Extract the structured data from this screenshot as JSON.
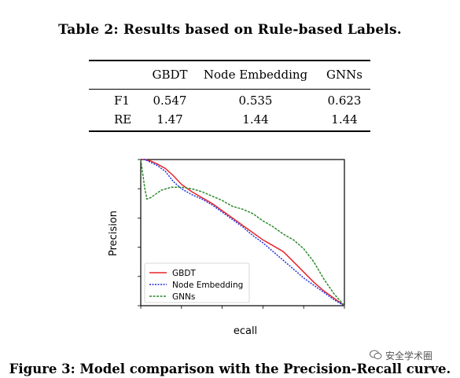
{
  "table": {
    "caption": "Table 2: Results based on Rule-based Labels.",
    "headers": [
      "",
      "GBDT",
      "Node Embedding",
      "GNNs"
    ],
    "rows": [
      {
        "label": "F1",
        "values": [
          "0.547",
          "0.535",
          "0.623"
        ]
      },
      {
        "label": "RE",
        "values": [
          "1.47",
          "1.44",
          "1.44"
        ]
      }
    ]
  },
  "chart_data": {
    "type": "line",
    "title": "",
    "xlabel": "ecall",
    "ylabel": "Precision",
    "xlim": [
      0,
      1
    ],
    "ylim": [
      0,
      1
    ],
    "grid": false,
    "legend_position": "bottom-left",
    "series": [
      {
        "name": "GBDT",
        "color": "#e8242a",
        "x": [
          0,
          0.02,
          0.05,
          0.08,
          0.12,
          0.16,
          0.2,
          0.25,
          0.3,
          0.35,
          0.4,
          0.45,
          0.5,
          0.55,
          0.6,
          0.65,
          0.7,
          0.75,
          0.8,
          0.85,
          0.9,
          0.95,
          1.0
        ],
        "y": [
          1.0,
          1.0,
          0.99,
          0.97,
          0.94,
          0.89,
          0.83,
          0.78,
          0.74,
          0.7,
          0.65,
          0.6,
          0.55,
          0.5,
          0.45,
          0.41,
          0.37,
          0.3,
          0.23,
          0.16,
          0.1,
          0.05,
          0.0
        ]
      },
      {
        "name": "Node Embedding",
        "color": "#1f2fd8",
        "x": [
          0,
          0.02,
          0.05,
          0.08,
          0.12,
          0.16,
          0.2,
          0.25,
          0.3,
          0.35,
          0.4,
          0.45,
          0.5,
          0.55,
          0.6,
          0.65,
          0.7,
          0.75,
          0.8,
          0.85,
          0.9,
          0.95,
          1.0
        ],
        "y": [
          1.0,
          1.0,
          0.98,
          0.96,
          0.92,
          0.85,
          0.8,
          0.76,
          0.73,
          0.69,
          0.64,
          0.59,
          0.54,
          0.48,
          0.43,
          0.37,
          0.31,
          0.25,
          0.19,
          0.14,
          0.09,
          0.04,
          0.0
        ]
      },
      {
        "name": "GNNs",
        "color": "#2c8a2c",
        "x": [
          0,
          0.01,
          0.02,
          0.03,
          0.05,
          0.08,
          0.1,
          0.15,
          0.2,
          0.25,
          0.3,
          0.35,
          0.4,
          0.45,
          0.5,
          0.55,
          0.6,
          0.65,
          0.7,
          0.75,
          0.8,
          0.85,
          0.9,
          0.95,
          1.0
        ],
        "y": [
          1.0,
          0.9,
          0.8,
          0.73,
          0.74,
          0.77,
          0.79,
          0.81,
          0.81,
          0.8,
          0.78,
          0.75,
          0.72,
          0.68,
          0.66,
          0.63,
          0.58,
          0.54,
          0.49,
          0.45,
          0.39,
          0.3,
          0.18,
          0.08,
          0.0
        ]
      }
    ]
  },
  "figure": {
    "caption": "Figure 3: Model comparison with the Precision-Recall curve."
  },
  "watermark": {
    "icon": "wechat-icon",
    "text": "安全学术圈"
  }
}
